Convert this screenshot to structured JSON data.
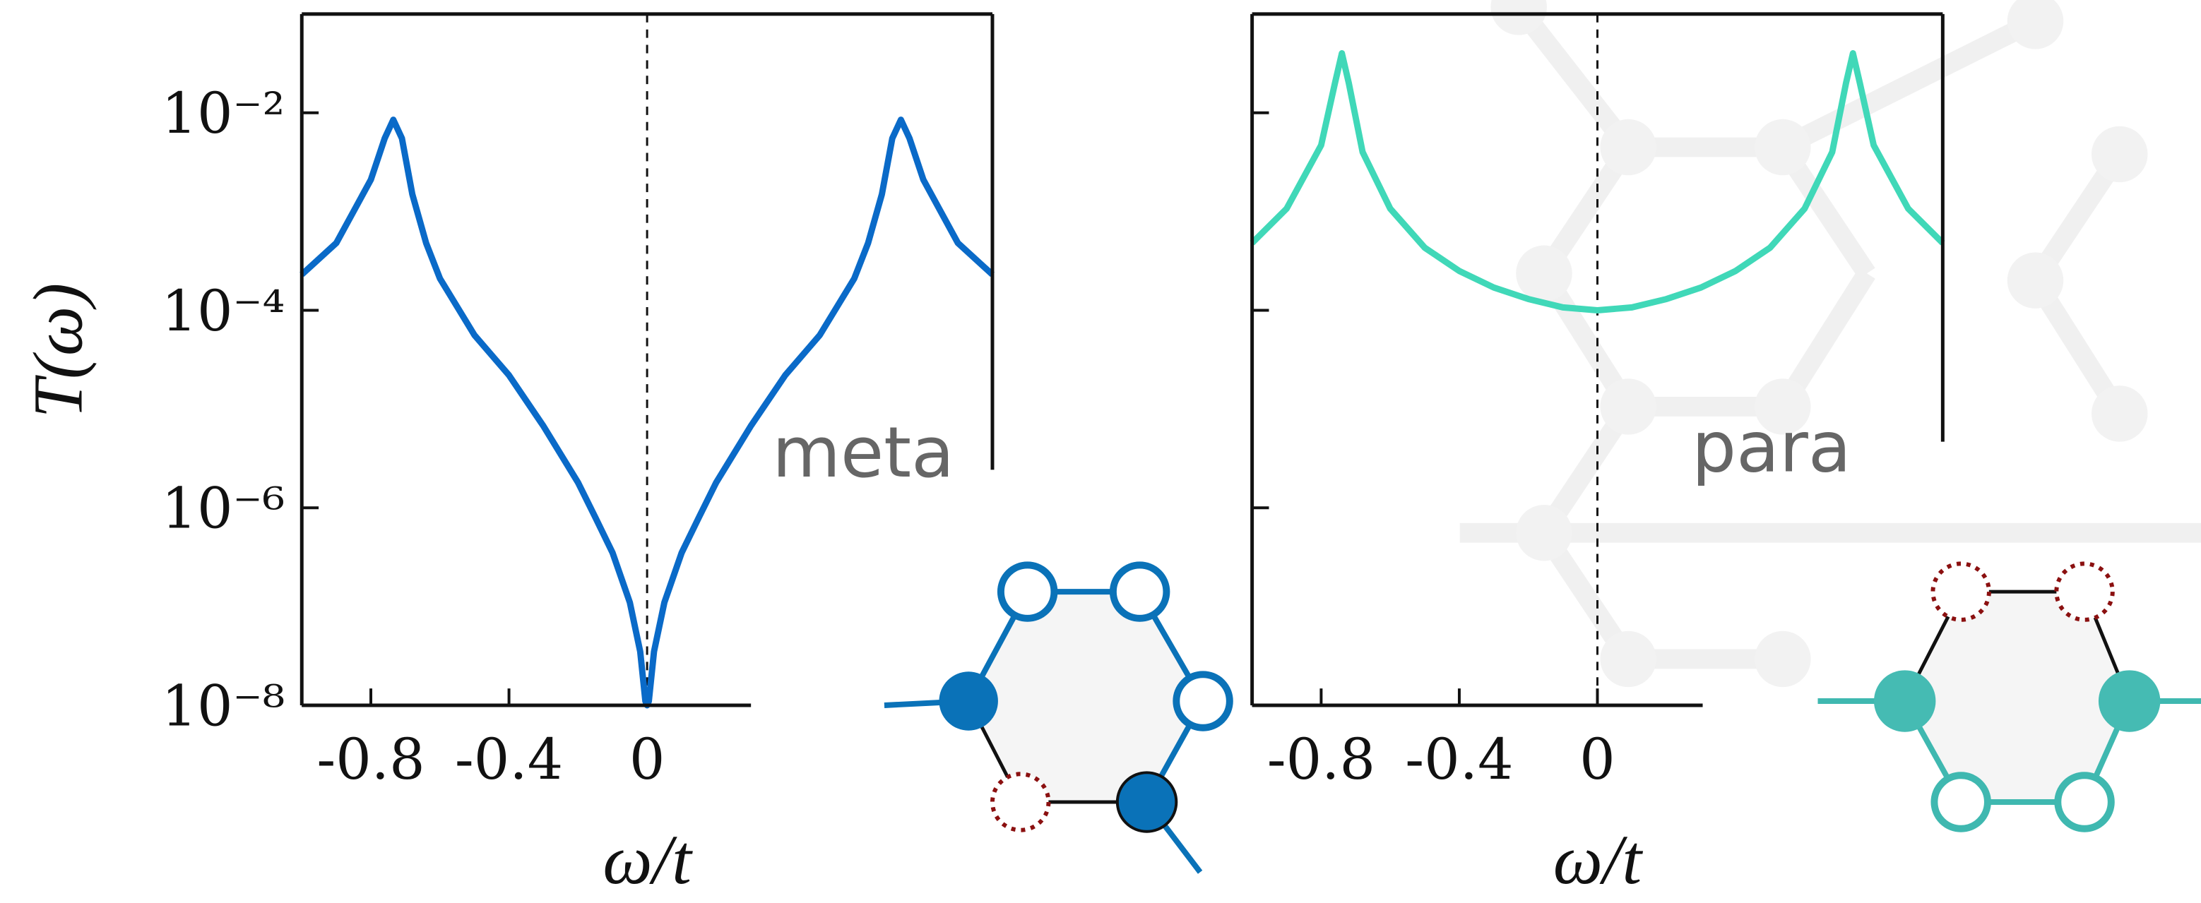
{
  "chart_data": [
    {
      "type": "line",
      "annotation": "meta",
      "ylabel": "T(ω)",
      "xlabel": "ω/t",
      "color": "#0a6ac8",
      "log_y": true,
      "xlim": [
        -1,
        1
      ],
      "ylim": [
        1e-08,
        0.1
      ],
      "xticks": [
        -0.8,
        -0.4,
        0
      ],
      "yticks": [
        {
          "value": 0.01,
          "label": "10⁻²"
        },
        {
          "value": 0.0001,
          "label": "10⁻⁴"
        },
        {
          "value": 1e-06,
          "label": "10⁻⁶"
        },
        {
          "value": 1e-08,
          "label": "10⁻⁸"
        }
      ],
      "vline": 0,
      "x": [
        -1,
        -0.9,
        -0.8,
        -0.76,
        -0.735,
        -0.71,
        -0.68,
        -0.64,
        -0.6,
        -0.5,
        -0.4,
        -0.3,
        -0.2,
        -0.15,
        -0.1,
        -0.05,
        -0.02,
        -0.005,
        0,
        0.005,
        0.02,
        0.05,
        0.1,
        0.15,
        0.2,
        0.3,
        0.4,
        0.5,
        0.6,
        0.64,
        0.68,
        0.71,
        0.735,
        0.76,
        0.8,
        0.9,
        1
      ],
      "values": [
        0.00023,
        0.00048,
        0.0021,
        0.0055,
        0.0085,
        0.0055,
        0.0015,
        0.00048,
        0.00021,
        5.6e-05,
        2.2e-05,
        6.7e-06,
        1.8e-06,
        8e-07,
        3.5e-07,
        1.1e-07,
        3.5e-08,
        1.1e-08,
        1e-08,
        1.1e-08,
        3.5e-08,
        1.1e-07,
        3.5e-07,
        8e-07,
        1.8e-06,
        6.7e-06,
        2.2e-05,
        5.6e-05,
        0.00021,
        0.00048,
        0.0015,
        0.0055,
        0.0085,
        0.0055,
        0.0021,
        0.00048,
        0.00023
      ]
    },
    {
      "type": "line",
      "annotation": "para",
      "xlabel": "ω/t",
      "color": "#40d8b8",
      "log_y": true,
      "xlim": [
        -1,
        1
      ],
      "ylim": [
        1e-08,
        0.1
      ],
      "xticks": [
        -0.8,
        -0.4,
        0
      ],
      "yticks": [
        {
          "value": 0.01,
          "label": ""
        },
        {
          "value": 0.0001,
          "label": ""
        },
        {
          "value": 1e-06,
          "label": ""
        },
        {
          "value": 1e-08,
          "label": ""
        }
      ],
      "vline": 0,
      "x": [
        -1,
        -0.9,
        -0.8,
        -0.76,
        -0.74,
        -0.72,
        -0.68,
        -0.6,
        -0.5,
        -0.4,
        -0.3,
        -0.2,
        -0.1,
        0,
        0.1,
        0.2,
        0.3,
        0.4,
        0.5,
        0.6,
        0.68,
        0.72,
        0.74,
        0.76,
        0.8,
        0.9,
        1
      ],
      "values": [
        0.00048,
        0.00107,
        0.0047,
        0.02,
        0.04,
        0.02,
        0.004,
        0.00107,
        0.00043,
        0.00025,
        0.00017,
        0.00013,
        0.000107,
        0.0001,
        0.000107,
        0.00013,
        0.00017,
        0.00025,
        0.00043,
        0.00107,
        0.004,
        0.02,
        0.04,
        0.02,
        0.0047,
        0.00107,
        0.00048
      ]
    }
  ]
}
